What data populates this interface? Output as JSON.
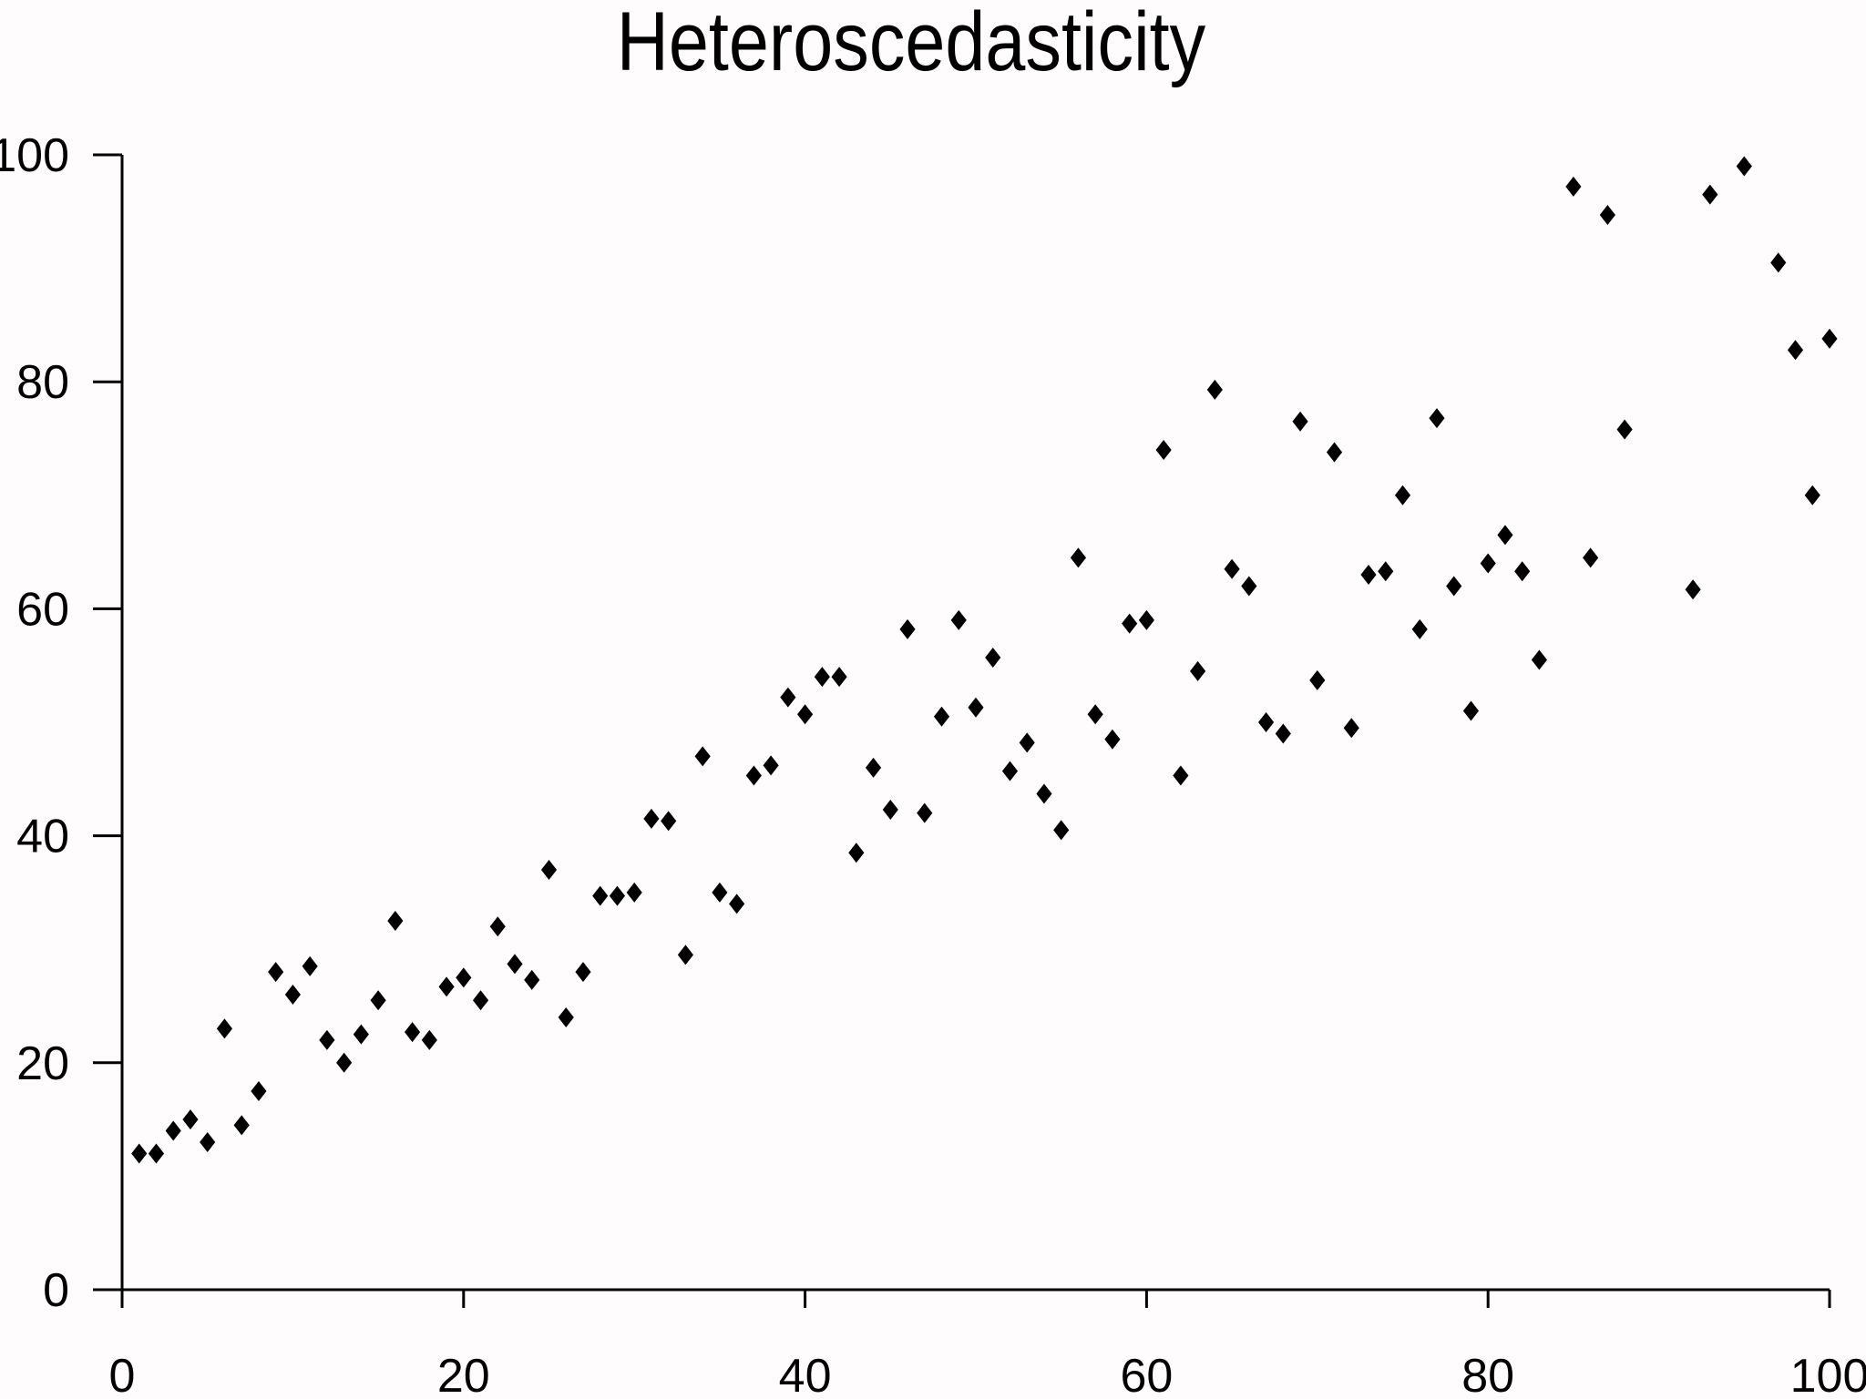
{
  "chart_data": {
    "type": "scatter",
    "title": "Heteroscedasticity",
    "xlabel": "",
    "ylabel": "",
    "xlim": [
      0,
      100
    ],
    "ylim": [
      0,
      100
    ],
    "x_ticks": [
      0,
      20,
      40,
      60,
      80,
      100
    ],
    "y_ticks": [
      0,
      20,
      40,
      60,
      80,
      100
    ],
    "grid": false,
    "marker_color": "#000000",
    "axis_color": "#000000",
    "background_color": "#fefcfd",
    "x": [
      1,
      2,
      3,
      4,
      5,
      6,
      7,
      8,
      9,
      10,
      11,
      12,
      13,
      14,
      15,
      16,
      17,
      18,
      19,
      20,
      21,
      22,
      23,
      24,
      25,
      26,
      27,
      28,
      29,
      30,
      31,
      32,
      33,
      34,
      35,
      36,
      37,
      38,
      39,
      40,
      41,
      42,
      43,
      44,
      45,
      46,
      47,
      48,
      49,
      50,
      51,
      52,
      53,
      54,
      55,
      56,
      57,
      58,
      59,
      60,
      61,
      62,
      63,
      64,
      65,
      66,
      67,
      68,
      69,
      70,
      71,
      72,
      73,
      74,
      75,
      76,
      77,
      78,
      79,
      80,
      81,
      82,
      83,
      85,
      86,
      87,
      88,
      92,
      93,
      95,
      97,
      98,
      99,
      100
    ],
    "y": [
      12,
      12,
      14,
      15,
      13,
      23,
      14.5,
      17.5,
      28,
      26,
      28.5,
      22,
      20,
      22.5,
      25.5,
      32.5,
      22.7,
      22,
      26.7,
      27.5,
      25.5,
      32,
      28.7,
      27.3,
      37,
      24,
      28,
      34.7,
      34.7,
      35,
      41.5,
      41.3,
      29.5,
      47,
      35,
      34,
      45.3,
      46.2,
      52.2,
      50.7,
      54,
      54,
      38.5,
      46,
      42.3,
      58.2,
      42,
      50.5,
      59,
      51.3,
      55.7,
      45.7,
      48.2,
      43.7,
      40.5,
      64.5,
      50.7,
      48.5,
      58.7,
      59,
      74,
      45.3,
      54.5,
      79.3,
      63.5,
      62,
      50,
      49,
      76.5,
      53.7,
      73.8,
      49.5,
      63,
      63.3,
      70,
      58.2,
      76.8,
      62,
      51,
      64,
      66.5,
      63.3,
      55.5,
      97.2,
      64.5,
      94.7,
      75.8,
      61.7,
      96.5,
      99,
      90.5,
      82.8,
      70,
      83.8
    ]
  }
}
